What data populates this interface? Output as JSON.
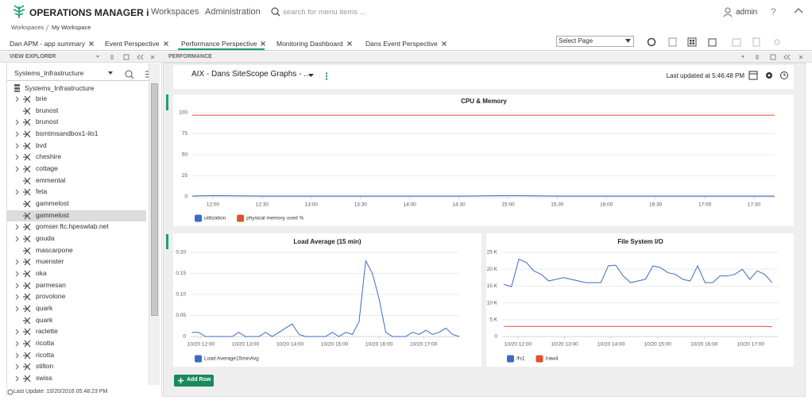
{
  "header": {
    "brand": "OPERATIONS MANAGER i",
    "nav": [
      "Workspaces",
      "Administration"
    ],
    "search_placeholder": "search for menu items ...",
    "user": "admin",
    "help": "?"
  },
  "breadcrumb": [
    "Workspaces",
    "My Workspace"
  ],
  "tabs": [
    "Dan APM - app summary",
    "Event Perspective",
    "Performance Perspective",
    "Monitoring Dashboard",
    "Dans Event Perspective"
  ],
  "active_tab": 2,
  "page_select": "Select Page",
  "view_explorer": {
    "title": "VIEW EXPLORER",
    "view": "Systems_Infrastructure",
    "root": "Systems_Infrastructure",
    "items": [
      {
        "label": "brie",
        "expandable": true
      },
      {
        "label": "brunost",
        "expandable": false
      },
      {
        "label": "brunost",
        "expandable": true
      },
      {
        "label": "bsmtmsandbox1-ilo1",
        "expandable": true
      },
      {
        "label": "bvd",
        "expandable": true
      },
      {
        "label": "cheshire",
        "expandable": true
      },
      {
        "label": "cottage",
        "expandable": true
      },
      {
        "label": "emmental",
        "expandable": false
      },
      {
        "label": "feta",
        "expandable": true
      },
      {
        "label": "gammelost",
        "expandable": false
      },
      {
        "label": "gammelost",
        "expandable": false
      },
      {
        "label": "gomser.ftc.hpeswlab.net",
        "expandable": true
      },
      {
        "label": "gouda",
        "expandable": true
      },
      {
        "label": "mascarpone",
        "expandable": false
      },
      {
        "label": "muenster",
        "expandable": true
      },
      {
        "label": "oka",
        "expandable": true
      },
      {
        "label": "parmesan",
        "expandable": true
      },
      {
        "label": "provolone",
        "expandable": true
      },
      {
        "label": "quark",
        "expandable": true
      },
      {
        "label": "quark",
        "expandable": false
      },
      {
        "label": "raclette",
        "expandable": true
      },
      {
        "label": "ricotta",
        "expandable": true
      },
      {
        "label": "ricotta",
        "expandable": true
      },
      {
        "label": "stilton",
        "expandable": true
      },
      {
        "label": "swiss",
        "expandable": true
      }
    ],
    "selected": 10,
    "last_update": "Last Update: 10/20/2016 05:48:23 PM"
  },
  "performance": {
    "title": "PERFORMANCE",
    "graph_name": "AIX - Dans SiteScope Graphs - ...",
    "last_updated": "Last updated at 5:46:48 PM",
    "add_row": "Add Row"
  },
  "chart_data": [
    {
      "type": "line",
      "title": "CPU & Memory",
      "grid": true,
      "x": [
        11.79,
        12,
        12.5,
        13,
        13.5,
        14,
        14.5,
        15,
        15.5,
        16,
        16.5,
        17,
        17.5,
        17.71
      ],
      "xlim": [
        11.79,
        17.71
      ],
      "xticks": [
        {
          "value": 12,
          "label": "12:00"
        },
        {
          "value": 12.5,
          "label": "12:30"
        },
        {
          "value": 13,
          "label": "13:00"
        },
        {
          "value": 13.5,
          "label": "13:30"
        },
        {
          "value": 14,
          "label": "14:00"
        },
        {
          "value": 14.5,
          "label": "14:30"
        },
        {
          "value": 15,
          "label": "15:00"
        },
        {
          "value": 15.5,
          "label": "15:30"
        },
        {
          "value": 16,
          "label": "16:00"
        },
        {
          "value": 16.5,
          "label": "16:30"
        },
        {
          "value": 17,
          "label": "17:00"
        },
        {
          "value": 17.5,
          "label": "17:30"
        }
      ],
      "ylim": [
        0,
        100
      ],
      "yticks": [
        0,
        25,
        50,
        75,
        100
      ],
      "series": [
        {
          "name": "utilization",
          "color": "#3a6bc9",
          "values": [
            1,
            1.5,
            1,
            1,
            1,
            1,
            1,
            1.5,
            1,
            1,
            1,
            1,
            1,
            1
          ]
        },
        {
          "name": "physical memory used %",
          "color": "#e0512b",
          "values": [
            97,
            97,
            97,
            97,
            97,
            97,
            97,
            97,
            97,
            97,
            97,
            97,
            97,
            97
          ]
        }
      ]
    },
    {
      "type": "line",
      "title": "Load Average (15 min)",
      "grid": true,
      "x": [
        11.8,
        11.95,
        12.1,
        12.25,
        12.4,
        12.55,
        12.7,
        12.85,
        13,
        13.15,
        13.3,
        13.45,
        13.6,
        13.75,
        13.9,
        14.05,
        14.2,
        14.35,
        14.5,
        14.65,
        14.8,
        14.95,
        15.1,
        15.25,
        15.4,
        15.55,
        15.7,
        15.85,
        16,
        16.15,
        16.3,
        16.45,
        16.6,
        16.75,
        16.9,
        17.05,
        17.2,
        17.35,
        17.5,
        17.65,
        17.8
      ],
      "xlim": [
        11.77,
        17.8
      ],
      "xticks": [
        {
          "value": 12,
          "label": "10/20 12:00"
        },
        {
          "value": 13,
          "label": "10/20 13:00"
        },
        {
          "value": 14,
          "label": "10/20 14:00"
        },
        {
          "value": 15,
          "label": "10/20 15:00"
        },
        {
          "value": 16,
          "label": "10/20 16:00"
        },
        {
          "value": 17,
          "label": "10/20 17:00"
        }
      ],
      "ylim": [
        0,
        0.2
      ],
      "yticks": [
        0,
        0.05,
        {
          "value": 0.1,
          "label": "0.10"
        },
        0.15,
        {
          "value": 0.2,
          "label": "0.20"
        }
      ],
      "series": [
        {
          "name": "Load Average15minAvg",
          "color": "#3a6bc9",
          "values": [
            0.01,
            0.01,
            0,
            0,
            0,
            0,
            0,
            0.01,
            0,
            0,
            0,
            0.01,
            0,
            0.01,
            0.02,
            0.03,
            0.005,
            0,
            0,
            0,
            0,
            0.01,
            0,
            0.01,
            0.005,
            0.035,
            0.18,
            0.15,
            0.09,
            0.01,
            0,
            0,
            0,
            0.01,
            0.005,
            0.015,
            0.005,
            0.01,
            0.02,
            0.005,
            0
          ]
        }
      ]
    },
    {
      "type": "line",
      "title": "File System I/O",
      "grid": true,
      "x": [
        11.7,
        11.86,
        12.02,
        12.18,
        12.34,
        12.5,
        12.66,
        12.82,
        12.98,
        13.14,
        13.3,
        13.46,
        13.62,
        13.78,
        13.94,
        14.1,
        14.26,
        14.42,
        14.58,
        14.74,
        14.9,
        15.06,
        15.22,
        15.38,
        15.54,
        15.7,
        15.86,
        16.02,
        16.18,
        16.34,
        16.5,
        16.66,
        16.82,
        16.98,
        17.14,
        17.3,
        17.46
      ],
      "xlim": [
        11.66,
        17.6
      ],
      "xticks": [
        {
          "value": 12,
          "label": "10/20 12:00"
        },
        {
          "value": 13,
          "label": "10/20 13:00"
        },
        {
          "value": 14,
          "label": "10/20 14:00"
        },
        {
          "value": 15,
          "label": "10/20 15:00"
        },
        {
          "value": 16,
          "label": "10/20 16:00"
        },
        {
          "value": 17,
          "label": "10/20 17:00"
        }
      ],
      "ylim": [
        0,
        25000
      ],
      "yticks": [
        0,
        {
          "value": 5000,
          "label": "5 K"
        },
        {
          "value": 10000,
          "label": "10 K"
        },
        {
          "value": 15000,
          "label": "15 K"
        },
        {
          "value": 20000,
          "label": "20 K"
        },
        {
          "value": 25000,
          "label": "25 K"
        }
      ],
      "series": [
        {
          "name": "/fs1",
          "color": "#3a6bc9",
          "values": [
            15500,
            14800,
            23000,
            22000,
            19500,
            18500,
            16500,
            17000,
            17500,
            17000,
            16500,
            16000,
            16000,
            16000,
            21000,
            21200,
            18000,
            16000,
            16500,
            17000,
            21000,
            20500,
            19000,
            18500,
            17000,
            16500,
            21000,
            16000,
            16000,
            18000,
            18000,
            18500,
            20000,
            17000,
            19500,
            18500,
            16000
          ]
        },
        {
          "name": "/raw4",
          "color": "#e0512b",
          "values": [
            3000,
            3000,
            3000,
            3000,
            3000,
            3000,
            3000,
            3000,
            3000,
            3000,
            3000,
            3000,
            3000,
            3000,
            3000,
            3000,
            3000,
            3000,
            3000,
            3000,
            3000,
            3000,
            3000,
            3000,
            3000,
            3000,
            3000,
            3000,
            3000,
            3000,
            3000,
            3000,
            3000,
            3000,
            3000,
            3000,
            2900
          ]
        }
      ]
    }
  ]
}
